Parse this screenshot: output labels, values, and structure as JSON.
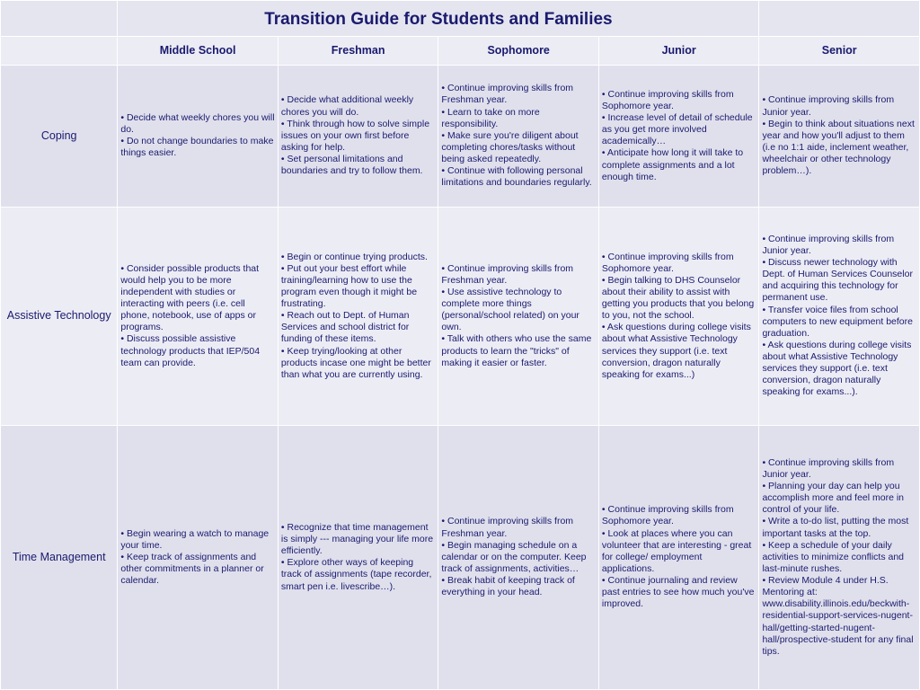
{
  "title": "Transition Guide for Students and Families",
  "columns": [
    "Middle School",
    "Freshman",
    "Sophomore",
    "Junior",
    "Senior"
  ],
  "rows": [
    {
      "label": "Coping",
      "cells": [
        "• Decide what weekly chores you will do.\n• Do not change boundaries to make things easier.",
        "• Decide what additional weekly chores you will do.\n• Think through how to solve simple issues on your own first before asking for help.\n• Set personal limitations and boundaries and try to follow them.",
        "• Continue improving skills from Freshman year.\n• Learn to take on more responsibility.\n• Make sure you're diligent about completing chores/tasks without being asked repeatedly.\n• Continue with following personal limitations and boundaries regularly.",
        "• Continue improving skills from Sophomore year.\n• Increase level of detail of schedule as you get more involved academically…\n• Anticipate how long it will take to complete assignments and a lot enough time.",
        "• Continue improving skills from Junior year.\n• Begin to think about situations next year and how you'll adjust to them (i.e no 1:1 aide, inclement weather, wheelchair or other technology problem…)."
      ]
    },
    {
      "label": "Assistive Technology",
      "cells": [
        "• Consider possible products that would help you to be more independent with studies or interacting with peers (i.e. cell phone, notebook, use of apps or programs.\n• Discuss possible assistive technology products that IEP/504 team can provide.",
        "• Begin or continue trying products.\n• Put out your best effort while training/learning how to use the program even though it might be frustrating.\n• Reach out to Dept. of Human Services and school district for funding of these items.\n• Keep trying/looking at other products incase one might be better than what you are currently using.",
        "• Continue improving skills from Freshman year.\n• Use assistive technology to complete more things (personal/school related) on your own.\n• Talk with others who use the same products to learn the \"tricks\" of making it easier or faster.",
        "• Continue improving skills from Sophomore year.\n• Begin talking to DHS Counselor about their ability to assist with getting you products that you belong to you, not the school.\n• Ask questions during college visits about what Assistive Technology services they support (i.e. text conversion, dragon naturally speaking for exams...)",
        "• Continue improving skills from Junior year.\n• Discuss newer technology with Dept. of Human Services Counselor and acquiring this technology for permanent use.\n• Transfer voice files from school computers to new equipment before graduation.\n• Ask questions during college visits about what Assistive Technology services they support (i.e. text conversion, dragon naturally speaking for exams...)."
      ]
    },
    {
      "label": "Time Management",
      "cells": [
        "• Begin wearing a watch to manage your time.\n• Keep track of assignments and other commitments in a planner or calendar.",
        "• Recognize that time management is simply --- managing your life more efficiently.\n• Explore other ways of keeping track of assignments (tape recorder, smart pen i.e. livescribe…).",
        "• Continue improving skills from Freshman year.\n• Begin managing schedule on a calendar or on the computer. Keep track of assignments, activities…\n• Break habit of keeping track of everything in your head.",
        "• Continue improving skills from Sophomore year.\n• Look at places where you can volunteer that are interesting - great for college/ employment applications.\n• Continue journaling and review past entries to see how much you've improved.",
        "• Continue improving skills from Junior year.\n• Planning your day can help you accomplish more and feel more in control of your life.\n• Write a to-do list, putting the most important tasks at the top.\n• Keep a schedule of your daily activities to minimize conflicts and last-minute rushes.\n• Review Module 4 under H.S. Mentoring at: www.disability.illinois.edu/beckwith-residential-support-services-nugent-hall/getting-started-nugent-hall/prospective-student for any final tips."
      ]
    }
  ],
  "colors": {
    "text": "#1a1a6e",
    "row_even": "#ececf5",
    "row_odd": "#e0e0ed",
    "border": "#ffffff",
    "background": "#e5e5f0"
  }
}
